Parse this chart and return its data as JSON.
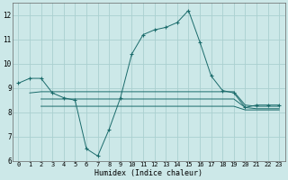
{
  "xlabel": "Humidex (Indice chaleur)",
  "background_color": "#cce8e8",
  "grid_color": "#aad0d0",
  "line_color": "#1a6b6b",
  "xlim": [
    -0.5,
    23.5
  ],
  "ylim": [
    6,
    12.5
  ],
  "yticks": [
    6,
    7,
    8,
    9,
    10,
    11,
    12
  ],
  "xticks": [
    0,
    1,
    2,
    3,
    4,
    5,
    6,
    7,
    8,
    9,
    10,
    11,
    12,
    13,
    14,
    15,
    16,
    17,
    18,
    19,
    20,
    21,
    22,
    23
  ],
  "series": {
    "main": {
      "x": [
        0,
        1,
        2,
        3,
        4,
        5,
        6,
        7,
        8,
        9,
        10,
        11,
        12,
        13,
        14,
        15,
        16,
        17,
        18,
        19,
        20,
        21,
        22,
        23
      ],
      "y": [
        9.2,
        9.4,
        9.4,
        8.8,
        8.6,
        8.5,
        6.5,
        6.2,
        7.3,
        8.6,
        10.4,
        11.2,
        11.4,
        11.5,
        11.7,
        12.2,
        10.9,
        9.5,
        8.9,
        8.8,
        8.2,
        8.3,
        8.3,
        8.3
      ]
    },
    "flat1": {
      "x": [
        1,
        2,
        3,
        4,
        5,
        6,
        7,
        8,
        9,
        10,
        11,
        12,
        13,
        14,
        15,
        16,
        17,
        18,
        19,
        20,
        21,
        22,
        23
      ],
      "y": [
        8.8,
        8.85,
        8.85,
        8.85,
        8.85,
        8.85,
        8.85,
        8.85,
        8.85,
        8.85,
        8.85,
        8.85,
        8.85,
        8.85,
        8.85,
        8.85,
        8.85,
        8.85,
        8.85,
        8.3,
        8.25,
        8.25,
        8.25
      ]
    },
    "flat2": {
      "x": [
        2,
        3,
        4,
        5,
        6,
        7,
        8,
        9,
        10,
        11,
        12,
        13,
        14,
        15,
        16,
        17,
        18,
        19,
        20,
        21,
        22,
        23
      ],
      "y": [
        8.55,
        8.55,
        8.55,
        8.55,
        8.55,
        8.55,
        8.55,
        8.55,
        8.55,
        8.55,
        8.55,
        8.55,
        8.55,
        8.55,
        8.55,
        8.55,
        8.55,
        8.55,
        8.2,
        8.15,
        8.15,
        8.15
      ]
    },
    "flat3": {
      "x": [
        2,
        3,
        4,
        5,
        6,
        7,
        8,
        9,
        10,
        11,
        12,
        13,
        14,
        15,
        16,
        17,
        18,
        19,
        20,
        21,
        22,
        23
      ],
      "y": [
        8.25,
        8.25,
        8.25,
        8.25,
        8.25,
        8.25,
        8.25,
        8.25,
        8.25,
        8.25,
        8.25,
        8.25,
        8.25,
        8.25,
        8.25,
        8.25,
        8.25,
        8.25,
        8.1,
        8.1,
        8.1,
        8.1
      ]
    }
  }
}
